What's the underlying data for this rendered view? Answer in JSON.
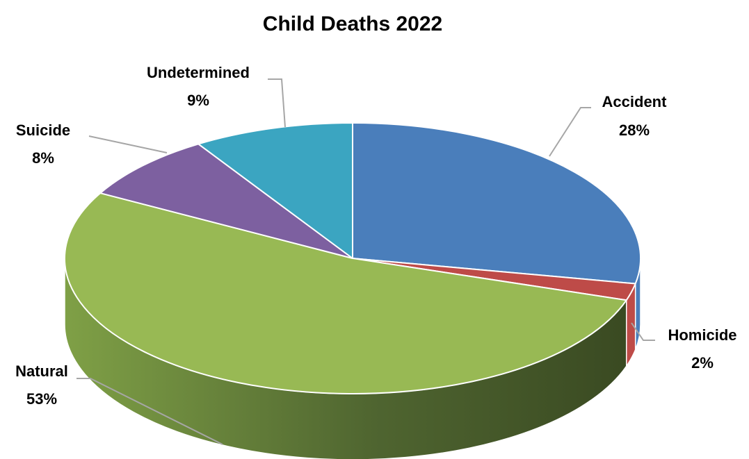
{
  "chart_data": {
    "type": "pie",
    "title": "Child Deaths 2022",
    "slices": [
      {
        "name": "Accident",
        "value": 28,
        "label": "28%",
        "color": "#4a7ebb"
      },
      {
        "name": "Homicide",
        "value": 2,
        "label": "2%",
        "color": "#be4b48"
      },
      {
        "name": "Natural",
        "value": 53,
        "label": "53%",
        "color": "#98b954"
      },
      {
        "name": "Suicide",
        "value": 8,
        "label": "8%",
        "color": "#7d60a0"
      },
      {
        "name": "Undetermined",
        "value": 9,
        "label": "9%",
        "color": "#3ba5c1"
      }
    ],
    "legend": "none"
  }
}
